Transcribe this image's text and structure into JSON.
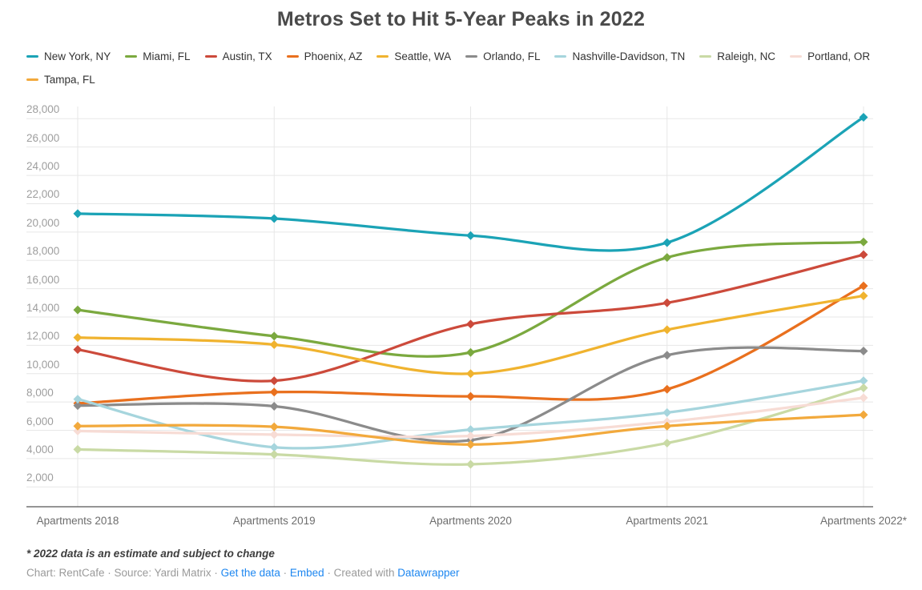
{
  "title": "Metros Set to Hit 5-Year Peaks in 2022",
  "chart_data": {
    "type": "line",
    "x": [
      "Apartments 2018",
      "Apartments 2019",
      "Apartments 2020",
      "Apartments 2021",
      "Apartments 2022*"
    ],
    "series": [
      {
        "name": "New York, NY",
        "color": "#1BA3B6",
        "values": [
          21300,
          20950,
          19750,
          19250,
          28100
        ]
      },
      {
        "name": "Miami, FL",
        "color": "#7BA93F",
        "values": [
          14500,
          12650,
          11500,
          18200,
          19300
        ]
      },
      {
        "name": "Austin, TX",
        "color": "#CC4A3B",
        "values": [
          11700,
          9500,
          13500,
          15000,
          18400
        ]
      },
      {
        "name": "Phoenix, AZ",
        "color": "#E9701E",
        "values": [
          7900,
          8700,
          8400,
          8900,
          16200
        ]
      },
      {
        "name": "Seattle, WA",
        "color": "#F0B32F",
        "values": [
          12550,
          12050,
          10000,
          13100,
          15500
        ]
      },
      {
        "name": "Orlando, FL",
        "color": "#8B8B8B",
        "values": [
          7750,
          7700,
          5300,
          11300,
          11600
        ]
      },
      {
        "name": "Nashville-Davidson, TN",
        "color": "#A6D5DD",
        "values": [
          8200,
          4800,
          6050,
          7250,
          9500
        ]
      },
      {
        "name": "Raleigh, NC",
        "color": "#C9DAA5",
        "values": [
          4650,
          4300,
          3600,
          5100,
          9000
        ]
      },
      {
        "name": "Portland, OR",
        "color": "#F7DCD5",
        "values": [
          5950,
          5700,
          5600,
          6600,
          8300
        ]
      },
      {
        "name": "Tampa, FL",
        "color": "#F2A93C",
        "values": [
          6300,
          6250,
          5000,
          6300,
          7100
        ]
      }
    ],
    "ylim": [
      2000,
      28000
    ],
    "ytick_step": 2000,
    "grid": true,
    "legend_position": "top",
    "marker": "diamond"
  },
  "footnote": "* 2022 data is an estimate and subject to change",
  "credit": {
    "prefix": "Chart: RentCafe · Source: Yardi Matrix · ",
    "get_data_label": "Get the data",
    "sep1": " · ",
    "embed_label": "Embed",
    "created_with": " · Created with ",
    "datawrapper_label": "Datawrapper"
  }
}
